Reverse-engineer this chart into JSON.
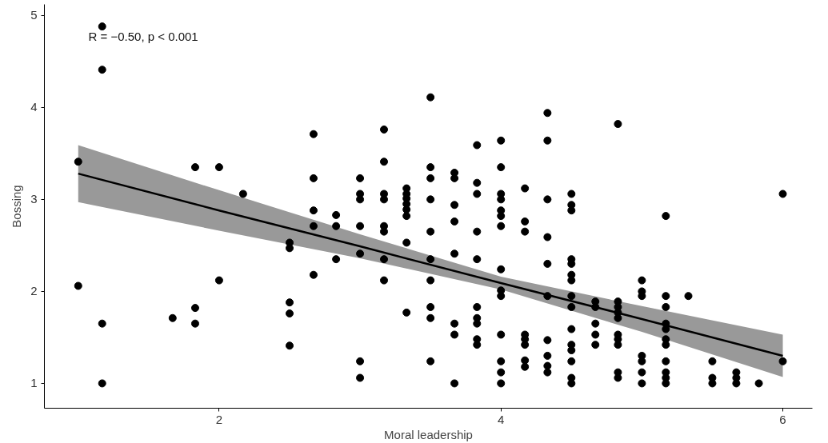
{
  "chart_data": {
    "type": "scatter",
    "xlabel": "Moral leadership",
    "ylabel": "Bossing",
    "annotations": [
      "R = −0.50, p < 0.001"
    ],
    "xlim": [
      0.76,
      6.21
    ],
    "ylim": [
      0.73,
      5.12
    ],
    "xticks": [
      2,
      4,
      6
    ],
    "yticks": [
      1,
      2,
      3,
      4,
      5
    ],
    "grid": false,
    "series": [
      {
        "marker": "circle",
        "color": "#000000",
        "x": [
          1.0,
          1.0,
          1.17,
          1.17,
          1.17,
          1.17,
          1.67,
          1.83,
          1.83,
          1.83,
          2.0,
          2.0,
          2.17,
          2.5,
          2.5,
          2.5,
          2.5,
          2.5,
          2.67,
          2.67,
          2.67,
          2.67,
          2.67,
          2.83,
          2.83,
          2.83,
          3.0,
          3.0,
          3.0,
          3.0,
          3.0,
          3.0,
          3.0,
          3.17,
          3.17,
          3.17,
          3.17,
          3.17,
          3.17,
          3.17,
          3.17,
          3.33,
          3.33,
          3.33,
          3.33,
          3.33,
          3.33,
          3.33,
          3.33,
          3.5,
          3.5,
          3.5,
          3.5,
          3.5,
          3.5,
          3.5,
          3.5,
          3.5,
          3.5,
          3.67,
          3.67,
          3.67,
          3.67,
          3.67,
          3.67,
          3.67,
          3.67,
          3.83,
          3.83,
          3.83,
          3.83,
          3.83,
          3.83,
          3.83,
          3.83,
          3.83,
          3.83,
          4.0,
          4.0,
          4.0,
          4.0,
          4.0,
          4.0,
          4.0,
          4.0,
          4.0,
          4.0,
          4.0,
          4.0,
          4.0,
          4.0,
          4.17,
          4.17,
          4.17,
          4.17,
          4.17,
          4.17,
          4.17,
          4.17,
          4.33,
          4.33,
          4.33,
          4.33,
          4.33,
          4.33,
          4.33,
          4.33,
          4.33,
          4.33,
          4.5,
          4.5,
          4.5,
          4.5,
          4.5,
          4.5,
          4.5,
          4.5,
          4.5,
          4.5,
          4.5,
          4.5,
          4.5,
          4.5,
          4.5,
          4.67,
          4.67,
          4.67,
          4.67,
          4.67,
          4.83,
          4.83,
          4.83,
          4.83,
          4.83,
          4.83,
          4.83,
          4.83,
          4.83,
          4.83,
          5.0,
          5.0,
          5.0,
          5.0,
          5.0,
          5.0,
          5.0,
          5.17,
          5.17,
          5.17,
          5.17,
          5.17,
          5.17,
          5.17,
          5.17,
          5.17,
          5.17,
          5.17,
          5.33,
          5.5,
          5.5,
          5.5,
          5.67,
          5.67,
          5.67,
          5.83,
          6.0,
          6.0
        ],
        "values": [
          3.41,
          2.06,
          4.88,
          4.41,
          1.65,
          1.0,
          1.71,
          3.35,
          1.82,
          1.65,
          3.35,
          2.12,
          3.06,
          2.53,
          2.47,
          1.88,
          1.76,
          1.41,
          3.71,
          3.23,
          2.88,
          2.71,
          2.18,
          2.83,
          2.71,
          2.35,
          3.23,
          3.06,
          3.0,
          2.71,
          2.41,
          1.24,
          1.06,
          3.76,
          3.41,
          3.06,
          3.0,
          2.71,
          2.65,
          2.35,
          2.12,
          3.12,
          3.06,
          3.01,
          2.95,
          2.89,
          2.82,
          2.53,
          1.77,
          4.11,
          3.35,
          3.23,
          3.0,
          2.65,
          2.35,
          2.12,
          1.83,
          1.71,
          1.24,
          3.29,
          3.23,
          2.94,
          2.76,
          2.41,
          1.65,
          1.53,
          1.0,
          3.59,
          3.18,
          3.06,
          2.65,
          2.35,
          1.83,
          1.71,
          1.65,
          1.48,
          1.42,
          3.64,
          3.35,
          3.06,
          3.0,
          2.88,
          2.82,
          2.71,
          2.24,
          2.01,
          1.95,
          1.53,
          1.24,
          1.12,
          1.0,
          3.12,
          2.76,
          2.65,
          1.53,
          1.48,
          1.42,
          1.25,
          1.18,
          3.94,
          3.64,
          3.0,
          2.59,
          2.3,
          1.95,
          1.47,
          1.3,
          1.19,
          1.12,
          3.06,
          2.94,
          2.88,
          2.35,
          2.3,
          2.18,
          2.12,
          1.95,
          1.83,
          1.59,
          1.42,
          1.36,
          1.24,
          1.06,
          1.0,
          1.89,
          1.83,
          1.65,
          1.53,
          1.42,
          3.82,
          1.89,
          1.83,
          1.77,
          1.71,
          1.53,
          1.48,
          1.42,
          1.12,
          1.06,
          2.12,
          2.0,
          1.95,
          1.3,
          1.24,
          1.12,
          1.0,
          2.82,
          1.95,
          1.83,
          1.65,
          1.59,
          1.48,
          1.42,
          1.24,
          1.12,
          1.06,
          1.0,
          1.95,
          1.24,
          1.06,
          1.0,
          1.12,
          1.06,
          1.0,
          1.0,
          3.06,
          1.24
        ]
      },
      {
        "type": "line",
        "color": "#000000",
        "x": [
          1,
          2,
          3,
          4,
          5,
          6
        ],
        "values": [
          3.28,
          2.88,
          2.49,
          2.09,
          1.7,
          1.3
        ],
        "lower": [
          2.97,
          2.66,
          2.36,
          2.02,
          1.56,
          1.07
        ],
        "upper": [
          3.59,
          3.1,
          2.62,
          2.16,
          1.84,
          1.53
        ]
      }
    ]
  }
}
